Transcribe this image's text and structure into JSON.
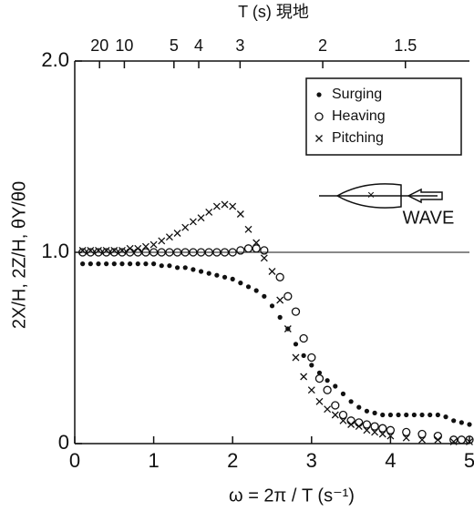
{
  "chart_data": {
    "type": "scatter",
    "ylabel": "2X/H, 2Z/H, θY/θ0",
    "xlabel": "ω = 2π / T (s⁻¹)",
    "top_axis_label": "T (s) 現地",
    "top_ticks": [
      20,
      10,
      5,
      4,
      3,
      2,
      1.5
    ],
    "annotation": "WAVE",
    "xlim": [
      0,
      5
    ],
    "ylim": [
      0,
      2
    ],
    "xticks": [
      0,
      1,
      2,
      3,
      4,
      5
    ],
    "yticks": [
      0,
      {
        "value": 1,
        "label": "1.0"
      },
      {
        "value": 2,
        "label": "2.0"
      }
    ],
    "reference_line": 1,
    "legend": "upper right",
    "series": [
      {
        "name": "Surging",
        "marker": "dot",
        "color": "#111",
        "x": [
          0.1,
          0.2,
          0.3,
          0.4,
          0.5,
          0.6,
          0.7,
          0.8,
          0.9,
          1.0,
          1.1,
          1.2,
          1.3,
          1.4,
          1.5,
          1.6,
          1.7,
          1.8,
          1.9,
          2.0,
          2.1,
          2.2,
          2.3,
          2.4,
          2.5,
          2.6,
          2.7,
          2.8,
          2.9,
          3.0,
          3.1,
          3.2,
          3.3,
          3.4,
          3.5,
          3.6,
          3.7,
          3.8,
          3.9,
          4.0,
          4.1,
          4.2,
          4.3,
          4.4,
          4.5,
          4.6,
          4.7,
          4.8,
          4.9,
          5.0
        ],
        "values": [
          0.94,
          0.94,
          0.94,
          0.94,
          0.94,
          0.94,
          0.94,
          0.94,
          0.94,
          0.94,
          0.93,
          0.93,
          0.92,
          0.92,
          0.91,
          0.9,
          0.89,
          0.88,
          0.87,
          0.86,
          0.84,
          0.82,
          0.8,
          0.77,
          0.72,
          0.66,
          0.6,
          0.52,
          0.46,
          0.41,
          0.37,
          0.33,
          0.3,
          0.26,
          0.22,
          0.19,
          0.17,
          0.16,
          0.15,
          0.15,
          0.15,
          0.15,
          0.15,
          0.15,
          0.15,
          0.15,
          0.14,
          0.12,
          0.11,
          0.1
        ]
      },
      {
        "name": "Heaving",
        "marker": "circle",
        "color": "#111",
        "x": [
          0.1,
          0.2,
          0.3,
          0.4,
          0.5,
          0.6,
          0.7,
          0.8,
          0.9,
          1.0,
          1.1,
          1.2,
          1.3,
          1.4,
          1.5,
          1.6,
          1.7,
          1.8,
          1.9,
          2.0,
          2.1,
          2.2,
          2.3,
          2.4,
          2.6,
          2.7,
          2.8,
          2.9,
          3.0,
          3.1,
          3.2,
          3.3,
          3.4,
          3.5,
          3.6,
          3.7,
          3.8,
          3.9,
          4.0,
          4.2,
          4.4,
          4.6,
          4.8,
          4.9,
          5.0
        ],
        "values": [
          1.0,
          1.0,
          1.0,
          1.0,
          1.0,
          1.0,
          1.0,
          1.0,
          1.0,
          1.0,
          1.0,
          1.0,
          1.0,
          1.0,
          1.0,
          1.0,
          1.0,
          1.0,
          1.0,
          1.0,
          1.01,
          1.02,
          1.02,
          1.01,
          0.87,
          0.77,
          0.69,
          0.55,
          0.45,
          0.34,
          0.28,
          0.2,
          0.15,
          0.12,
          0.11,
          0.1,
          0.09,
          0.08,
          0.07,
          0.06,
          0.05,
          0.04,
          0.02,
          0.02,
          0.02
        ]
      },
      {
        "name": "Pitching",
        "marker": "cross",
        "color": "#111",
        "x": [
          0.1,
          0.2,
          0.3,
          0.4,
          0.5,
          0.6,
          0.7,
          0.8,
          0.9,
          1.0,
          1.1,
          1.2,
          1.3,
          1.4,
          1.5,
          1.6,
          1.7,
          1.8,
          1.9,
          2.0,
          2.1,
          2.2,
          2.3,
          2.4,
          2.5,
          2.6,
          2.7,
          2.8,
          2.9,
          3.0,
          3.1,
          3.2,
          3.3,
          3.4,
          3.5,
          3.6,
          3.7,
          3.8,
          3.9,
          4.0,
          4.2,
          4.4,
          4.6,
          4.8,
          5.0
        ],
        "values": [
          1.01,
          1.01,
          1.01,
          1.01,
          1.01,
          1.01,
          1.02,
          1.02,
          1.03,
          1.04,
          1.06,
          1.08,
          1.1,
          1.13,
          1.16,
          1.18,
          1.21,
          1.24,
          1.25,
          1.24,
          1.2,
          1.12,
          1.05,
          0.97,
          0.9,
          0.75,
          0.6,
          0.45,
          0.35,
          0.28,
          0.22,
          0.18,
          0.15,
          0.12,
          0.1,
          0.09,
          0.07,
          0.06,
          0.05,
          0.04,
          0.03,
          0.02,
          0.02,
          0.01,
          0.01
        ]
      }
    ]
  }
}
